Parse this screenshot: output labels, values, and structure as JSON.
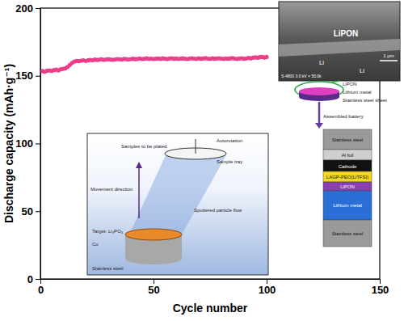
{
  "chart_data": {
    "type": "scatter",
    "x_label": "Cycle number",
    "y_label": "Discharge capacity (mAh·g⁻¹)",
    "x": [
      1,
      2,
      3,
      4,
      5,
      6,
      7,
      8,
      9,
      10,
      11,
      12,
      13,
      14,
      15,
      16,
      17,
      18,
      19,
      20,
      21,
      22,
      23,
      24,
      25,
      26,
      27,
      28,
      29,
      30,
      31,
      32,
      33,
      34,
      35,
      36,
      37,
      38,
      39,
      40,
      41,
      42,
      43,
      44,
      45,
      46,
      47,
      48,
      49,
      50,
      51,
      52,
      53,
      54,
      55,
      56,
      57,
      58,
      59,
      60,
      61,
      62,
      63,
      64,
      65,
      66,
      67,
      68,
      69,
      70,
      71,
      72,
      73,
      74,
      75,
      76,
      77,
      78,
      79,
      80,
      81,
      82,
      83,
      84,
      85,
      86,
      87,
      88,
      89,
      90,
      91,
      92,
      93,
      94,
      95,
      96,
      97,
      98,
      99,
      100
    ],
    "values": [
      153.5,
      153,
      153.8,
      154,
      153.6,
      154.2,
      154.5,
      154,
      154.8,
      155.2,
      155.5,
      156.5,
      158,
      159.5,
      160.5,
      161,
      160.8,
      161.2,
      161.5,
      161,
      161.4,
      161.8,
      161.5,
      162,
      161.7,
      161.9,
      162.2,
      161.8,
      162,
      162.3,
      162,
      161.8,
      162.1,
      162.4,
      162.2,
      162,
      162.5,
      162.3,
      162.1,
      162.4,
      162.6,
      162.3,
      162.5,
      162.8,
      162.4,
      162.6,
      162.9,
      162.5,
      162.7,
      162.4,
      162.6,
      162.8,
      162.5,
      162.9,
      162.7,
      162.4,
      162.8,
      163,
      162.6,
      162.8,
      162.5,
      162.7,
      162.9,
      162.6,
      162.4,
      162.8,
      163,
      162.7,
      162.5,
      162.9,
      162.6,
      162.8,
      163.1,
      162.7,
      162.5,
      162.9,
      162.6,
      162.8,
      163,
      162.7,
      162.5,
      162.8,
      162.6,
      162.9,
      163.1,
      162.7,
      162.5,
      162.8,
      163,
      162.6,
      162.8,
      163.2,
      162.9,
      163.4,
      163.6,
      163.3,
      163.8,
      164,
      163.5,
      163.9
    ],
    "color": "#ee3d8b",
    "marker": "circle",
    "xlim": [
      0,
      150
    ],
    "xticks": [
      0,
      50,
      100,
      150
    ],
    "ylim": [
      0,
      200
    ],
    "yticks": [
      0,
      50,
      100,
      150,
      200
    ],
    "grid": false,
    "annotations": [
      "LiPON",
      "Li",
      "Li",
      "S-4800 3.0 kV × 50.0k",
      "1 μm",
      "LiPON",
      "Lithium metal",
      "Stainless steel sheet",
      "Assembled battery",
      "Stainless steel",
      "Al foil",
      "Cathode",
      "LAGP-PEO(LiTFSI)",
      "LiPON",
      "Lithium metal",
      "Stainless steel",
      "Autorotation",
      "Samples to be plated",
      "Sample tray",
      "Movement direction",
      "Sputtered particle flow",
      "Target: Li₃PO₄",
      "Cu",
      "Stainless steel"
    ]
  }
}
